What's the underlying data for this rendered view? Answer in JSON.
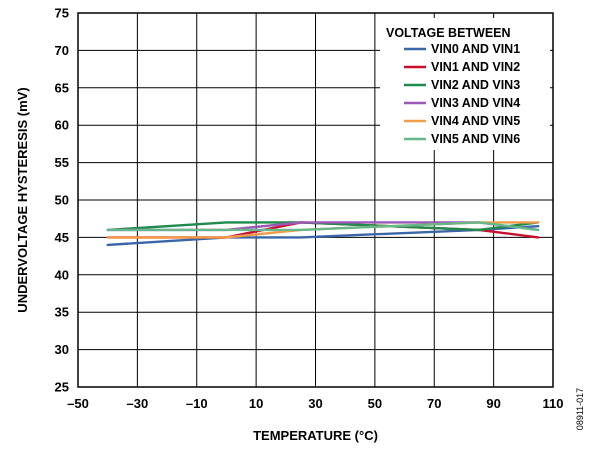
{
  "chart_data": {
    "type": "line",
    "xlabel": "TEMPERATURE (°C)",
    "ylabel": "UNDERVOLTAGE HYSTERESIS (mV)",
    "xlim": [
      -50,
      110
    ],
    "ylim": [
      25,
      75
    ],
    "xticks": [
      -50,
      -30,
      -10,
      10,
      30,
      50,
      70,
      90,
      110
    ],
    "xtick_labels": [
      "–50",
      "–30",
      "–10",
      "10",
      "30",
      "50",
      "70",
      "90",
      "110"
    ],
    "yticks": [
      25,
      30,
      35,
      40,
      45,
      50,
      55,
      60,
      65,
      70,
      75
    ],
    "ytick_labels": [
      "25",
      "30",
      "35",
      "40",
      "45",
      "50",
      "55",
      "60",
      "65",
      "70",
      "75"
    ],
    "grid": true,
    "legend": {
      "title": "VOLTAGE BETWEEN",
      "placement": "top-right"
    },
    "x": [
      -40,
      0,
      25,
      85,
      105
    ],
    "series": [
      {
        "name": "VIN0 AND VIN1",
        "color": "#3a66a8",
        "values": [
          44.0,
          45.0,
          45.0,
          46.0,
          46.5
        ]
      },
      {
        "name": "VIN1 AND VIN2",
        "color": "#c8102e",
        "values": [
          45.0,
          45.0,
          47.0,
          46.0,
          45.0
        ]
      },
      {
        "name": "VIN2 AND VIN3",
        "color": "#1e8a4c",
        "values": [
          46.0,
          47.0,
          47.0,
          46.0,
          47.0
        ]
      },
      {
        "name": "VIN3 AND VIN4",
        "color": "#9b59b6",
        "values": [
          46.0,
          46.0,
          47.0,
          47.0,
          46.0
        ]
      },
      {
        "name": "VIN4 AND VIN5",
        "color": "#f39c4a",
        "values": [
          45.0,
          45.0,
          46.0,
          47.0,
          47.0
        ]
      },
      {
        "name": "VIN5 AND VIN6",
        "color": "#66b88a",
        "values": [
          46.0,
          46.0,
          46.0,
          47.0,
          46.0
        ]
      }
    ],
    "figure_id": "08911-017"
  }
}
